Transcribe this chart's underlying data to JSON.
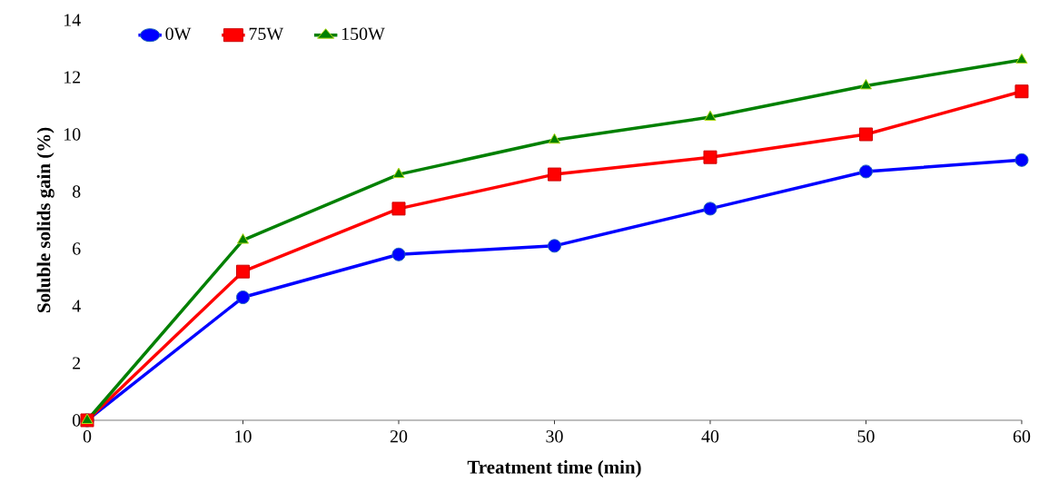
{
  "chart_data": {
    "type": "line",
    "xlabel": "Treatment time (min)",
    "ylabel": "Soluble solids gain (%)",
    "x": [
      0,
      10,
      20,
      30,
      40,
      50,
      60
    ],
    "series": [
      {
        "name": "0W",
        "color": "#0000ff",
        "marker": "circle",
        "values": [
          0,
          4.3,
          5.8,
          6.1,
          7.4,
          8.7,
          9.1
        ]
      },
      {
        "name": "75W",
        "color": "#ff0000",
        "marker": "square",
        "values": [
          0,
          5.2,
          7.4,
          8.6,
          9.2,
          10.0,
          11.5
        ]
      },
      {
        "name": "150W",
        "color": "#008000",
        "marker": "triangle",
        "values": [
          0,
          6.3,
          8.6,
          9.8,
          10.6,
          11.7,
          12.6
        ]
      }
    ],
    "xlim": [
      0,
      60
    ],
    "xticks": [
      0,
      10,
      20,
      30,
      40,
      50,
      60
    ],
    "ylim": [
      0,
      14
    ],
    "yticks": [
      0,
      2,
      4,
      6,
      8,
      10,
      12,
      14
    ],
    "grid": false,
    "legend": "top left",
    "line_style": "solid"
  }
}
